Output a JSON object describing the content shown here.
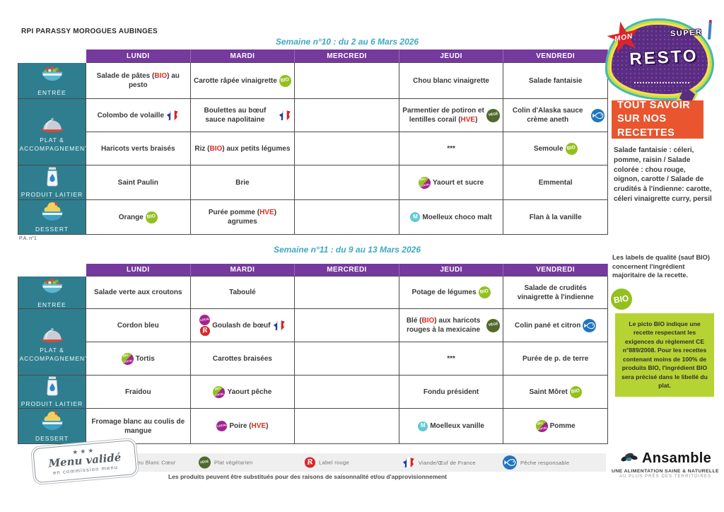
{
  "page": {
    "org": "RPI PARASSY MOROGUES AUBINGES",
    "pa_note": "P.A. n°1",
    "footer_note": "Les produits peuvent être substitués pour des raisons de saisonnalité et/ou d'approvisionnement"
  },
  "colors": {
    "header_purple": "#76399E",
    "sidebar_teal": "#2E7E8F",
    "week_title_teal": "#3FA9C4",
    "accent_orange": "#E8552E",
    "note_green_bg": "#B5D333",
    "keyword_red": "#E02B20",
    "bio_green": "#93C01F",
    "vege_green": "#52682D",
    "fish_blue": "#2176BD",
    "local_magenta": "#A3238E",
    "maison_teal": "#5FC9D6"
  },
  "logo": {
    "word1": "MON",
    "word2": "SUPER",
    "word3": "RESTO"
  },
  "right_panel": {
    "orange_box": "TOUT SAVOIR SUR NOS RECETTES",
    "recipes_text": "Salade fantaisie : céleri, pomme, raisin / Salade colorée : chou rouge, oignon, carotte / Salade de crudités à l'indienne: carotte, céleri vinaigrette curry, persil",
    "labels_note": "Les labels de qualité (sauf BIO) concernent l'ingrédient majoritaire de la recette.",
    "bio_note": "Le picto BIO indique une recette respectant les exigences du règlement CE n°889/2008. Pour les recettes contenant moins de 100% de produits BIO, l'ingrédient BIO sera précisé dans le libellé du plat."
  },
  "days": [
    "LUNDI",
    "MARDI",
    "MERCREDI",
    "JEUDI",
    "VENDREDI"
  ],
  "categories": [
    {
      "id": "entree",
      "label": "ENTRÉE",
      "icon": "salad-bowl-icon",
      "rows": 1
    },
    {
      "id": "plat",
      "label": "PLAT & ACCOMPAGNEMENT",
      "icon": "cloche-icon",
      "rows": 2
    },
    {
      "id": "laitier",
      "label": "PRODUIT LAITIER",
      "icon": "milk-can-icon",
      "rows": 1
    },
    {
      "id": "dessert",
      "label": "DESSERT",
      "icon": "dessert-cup-icon",
      "rows": 1
    }
  ],
  "icons": {
    "bio": {
      "label": "BIO"
    },
    "vege": {
      "label": "VÉGÉ"
    },
    "local": {
      "label": "LOCAL"
    },
    "biolocal": {
      "label_top": "BIO",
      "label_bottom": "LOCAL"
    },
    "labelrouge": {
      "label": "R"
    },
    "maison": {
      "label": "M"
    }
  },
  "weeks": [
    {
      "title": "Semaine n°10 : du 2 au 6 Mars 2026",
      "rows": [
        {
          "cells": [
            {
              "text": "Salade de pâtes (BIO) au pesto"
            },
            {
              "text": "Carotte râpée vinaigrette",
              "icons_after": [
                "bio"
              ]
            },
            {
              "text": ""
            },
            {
              "text": "Chou blanc vinaigrette"
            },
            {
              "text": "Salade fantaisie"
            }
          ]
        },
        {
          "cells": [
            {
              "text": "Colombo de volaille",
              "icons_after": [
                "france"
              ]
            },
            {
              "text": "Boulettes au bœuf sauce napolitaine",
              "icons_after": [
                "france"
              ]
            },
            {
              "text": ""
            },
            {
              "text": "Parmentier de potiron et lentilles corail (HVE)",
              "icons_after": [
                "vege"
              ]
            },
            {
              "text": "Colin d'Alaska sauce crème aneth",
              "icons_after": [
                "fish"
              ]
            }
          ]
        },
        {
          "cells": [
            {
              "text": "Haricots verts braisés"
            },
            {
              "text": "Riz (BIO) aux petits légumes"
            },
            {
              "text": ""
            },
            {
              "text": "***"
            },
            {
              "text": "Semoule",
              "icons_after": [
                "bio"
              ]
            }
          ]
        },
        {
          "cells": [
            {
              "text": "Saint Paulin"
            },
            {
              "text": "Brie"
            },
            {
              "text": ""
            },
            {
              "text": "Yaourt et sucre",
              "icons_before": [
                "biolocal"
              ]
            },
            {
              "text": "Emmental"
            }
          ]
        },
        {
          "cells": [
            {
              "text": "Orange",
              "icons_after": [
                "bio"
              ]
            },
            {
              "text": "Purée pomme (HVE) agrumes"
            },
            {
              "text": ""
            },
            {
              "text": "Moelleux choco malt",
              "icons_before": [
                "maison"
              ]
            },
            {
              "text": "Flan à la vanille"
            }
          ]
        }
      ]
    },
    {
      "title": "Semaine n°11 : du 9 au 13 Mars 2026",
      "rows": [
        {
          "cells": [
            {
              "text": "Salade verte aux croutons"
            },
            {
              "text": "Taboulé"
            },
            {
              "text": ""
            },
            {
              "text": "Potage de légumes",
              "icons_after": [
                "bio"
              ]
            },
            {
              "text": "Salade de crudités vinaigrette à l'indienne"
            }
          ]
        },
        {
          "cells": [
            {
              "text": "Cordon bleu"
            },
            {
              "text": "Goulash de bœuf",
              "icons_before": [
                "local",
                "labelrouge"
              ],
              "icons_after": [
                "france"
              ]
            },
            {
              "text": ""
            },
            {
              "text": "Blé (BIO) aux haricots rouges à la mexicaine",
              "icons_after": [
                "vege"
              ]
            },
            {
              "text": "Colin pané et citron",
              "icons_after": [
                "fish"
              ]
            }
          ]
        },
        {
          "cells": [
            {
              "text": "Tortis",
              "icons_before": [
                "biolocal"
              ]
            },
            {
              "text": "Carottes braisées"
            },
            {
              "text": ""
            },
            {
              "text": "***"
            },
            {
              "text": "Purée de p. de terre"
            }
          ]
        },
        {
          "cells": [
            {
              "text": "Fraidou"
            },
            {
              "text": "Yaourt pêche",
              "icons_before": [
                "biolocal"
              ]
            },
            {
              "text": ""
            },
            {
              "text": "Fondu président"
            },
            {
              "text": "Saint Môret",
              "icons_after": [
                "bio"
              ]
            }
          ]
        },
        {
          "cells": [
            {
              "text": "Fromage blanc au coulis de mangue"
            },
            {
              "text": "Poire (HVE)",
              "icons_before": [
                "local"
              ]
            },
            {
              "text": ""
            },
            {
              "text": "Moelleux vanille",
              "icons_before": [
                "maison"
              ]
            },
            {
              "text": "Pomme",
              "icons_before": [
                "biolocal"
              ]
            }
          ]
        }
      ]
    }
  ],
  "legend": {
    "items": [
      {
        "icon": "bbc",
        "label": "Bleu Blanc Cœur"
      },
      {
        "icon": "vege",
        "label": "Plat végétarien"
      },
      {
        "icon": "labelrouge",
        "label": "Label rouge"
      },
      {
        "icon": "france",
        "label": "Viande/Œuf de France"
      },
      {
        "icon": "fish",
        "label": "Pêche responsable"
      }
    ]
  },
  "stamp": {
    "stars": "★★★",
    "line1": "Menu validé",
    "line2": "en commission menu"
  },
  "brand": {
    "name": "Ansamble",
    "tagline1": "UNE ALIMENTATION SAINE & NATURELLE",
    "tagline2": "AU PLUS PRÈS DES TERRITOIRES"
  }
}
